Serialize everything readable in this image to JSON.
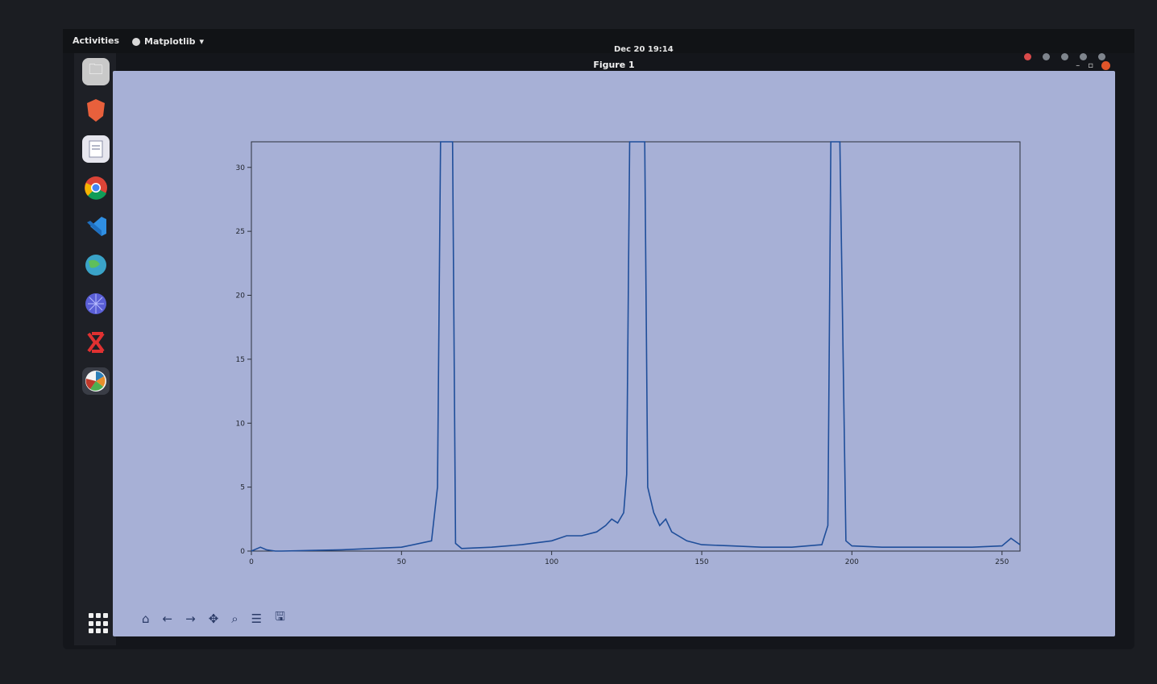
{
  "topbar": {
    "activities": "Activities",
    "app_menu": "Matplotlib",
    "clock": "Dec 20  19:14"
  },
  "window": {
    "title": "Figure 1"
  },
  "dock": {
    "items": [
      "files-icon",
      "brave-icon",
      "text-editor-icon",
      "chrome-icon",
      "vscode-icon",
      "browser-globe-icon",
      "network-icon",
      "xilinx-icon",
      "matplotlib-icon"
    ]
  },
  "toolbar": {
    "icons": [
      "home-icon",
      "back-icon",
      "forward-icon",
      "pan-icon",
      "zoom-icon",
      "configure-icon",
      "save-icon"
    ]
  },
  "chart_data": {
    "type": "line",
    "title": "",
    "xlabel": "",
    "ylabel": "",
    "xlim": [
      0,
      256
    ],
    "ylim": [
      0,
      32
    ],
    "xticks": [
      0,
      50,
      100,
      150,
      200,
      250
    ],
    "yticks": [
      0,
      5,
      10,
      15,
      20,
      25,
      30
    ],
    "x": [
      0,
      3,
      5,
      8,
      10,
      30,
      50,
      60,
      62,
      63,
      64,
      66,
      67,
      68,
      70,
      80,
      90,
      100,
      105,
      110,
      115,
      118,
      120,
      122,
      124,
      125,
      126,
      127,
      130,
      131,
      132,
      134,
      136,
      138,
      140,
      145,
      150,
      160,
      170,
      180,
      190,
      192,
      193,
      194,
      195,
      196,
      198,
      200,
      210,
      220,
      230,
      240,
      250,
      253,
      256
    ],
    "series": [
      {
        "values": [
          0,
          0.3,
          0.1,
          0,
          0,
          0.1,
          0.3,
          0.8,
          5,
          32,
          32,
          32,
          32,
          0.6,
          0.2,
          0.3,
          0.5,
          0.8,
          1.2,
          1.2,
          1.5,
          2,
          2.5,
          2.2,
          3,
          6,
          32,
          32,
          32,
          32,
          5,
          3,
          2,
          2.5,
          1.5,
          0.8,
          0.5,
          0.4,
          0.3,
          0.3,
          0.5,
          2,
          32,
          32,
          32,
          32,
          0.8,
          0.4,
          0.3,
          0.3,
          0.3,
          0.3,
          0.4,
          1,
          0.5
        ]
      }
    ]
  }
}
